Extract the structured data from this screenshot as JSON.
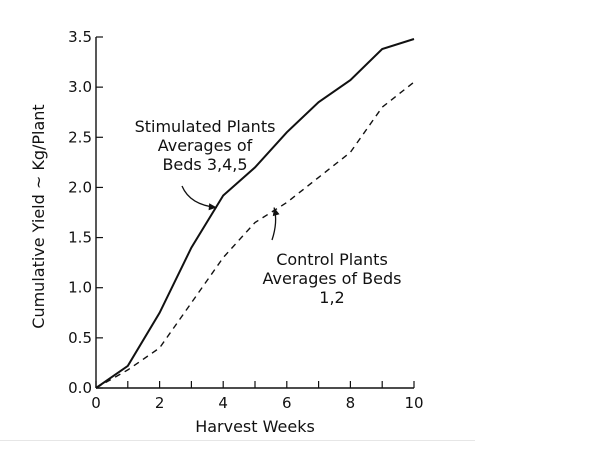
{
  "chart_data": {
    "type": "line",
    "title": "",
    "xlabel": "Harvest Weeks",
    "ylabel": "Cumulative Yield ~ Kg/Plant",
    "xlim": [
      0,
      10
    ],
    "ylim": [
      0,
      3.5
    ],
    "x_ticks": [
      0,
      2,
      4,
      6,
      8,
      10
    ],
    "x_minor_ticks": [
      1,
      3,
      5,
      7,
      9
    ],
    "y_ticks": [
      "0.0",
      "0.5",
      "1.0",
      "1.5",
      "2.0",
      "2.5",
      "3.0",
      "3.5"
    ],
    "grid": false,
    "series": [
      {
        "id": "stimulated",
        "style": "solid",
        "x": [
          0,
          1,
          2,
          3,
          4,
          5,
          6,
          7,
          8,
          9,
          10
        ],
        "y": [
          0.0,
          0.22,
          0.75,
          1.4,
          1.92,
          2.2,
          2.55,
          2.85,
          3.07,
          3.38,
          3.48
        ]
      },
      {
        "id": "control",
        "style": "dashed",
        "x": [
          0,
          1,
          2,
          3,
          4,
          5,
          6,
          7,
          8,
          9,
          10
        ],
        "y": [
          0.0,
          0.18,
          0.4,
          0.85,
          1.3,
          1.65,
          1.85,
          2.1,
          2.35,
          2.8,
          3.05
        ]
      }
    ],
    "annotations": [
      {
        "target": "stimulated",
        "lines": [
          "Stimulated Plants",
          "Averages of",
          "Beds 3,4,5"
        ],
        "arrow_to": [
          3.8,
          1.8
        ]
      },
      {
        "target": "control",
        "lines": [
          "Control Plants",
          "Averages of Beds",
          "1,2"
        ],
        "arrow_to": [
          5.6,
          1.8
        ]
      }
    ]
  }
}
